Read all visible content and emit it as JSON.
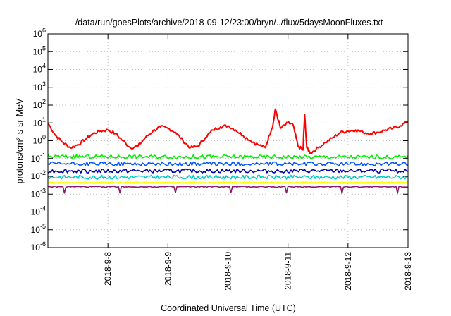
{
  "chart_data": {
    "type": "line",
    "title": "/data/run/goesPlots/archive/2018-09-12/23:00/bryn/../flux/5daysMoonFluxes.txt",
    "xlabel": "Coordinated Universal Time (UTC)",
    "ylabel": "protons/cm²-s-sr-MeV",
    "yscale": "log",
    "ylim": [
      1e-06,
      1000000.0
    ],
    "xlim": [
      "2018-09-07 00:00",
      "2018-09-13 00:00"
    ],
    "x_tick_labels": [
      "2018-9-8",
      "2018-9-9",
      "2018-9-10",
      "2018-9-11",
      "2018-9-12",
      "2018-9-13"
    ],
    "y_tick_labels": [
      {
        "base": "10",
        "exp": "-6"
      },
      {
        "base": "10",
        "exp": "-5"
      },
      {
        "base": "10",
        "exp": "-4"
      },
      {
        "base": "10",
        "exp": "-3"
      },
      {
        "base": "10",
        "exp": "-2"
      },
      {
        "base": "10",
        "exp": "-1"
      },
      {
        "base": "10",
        "exp": "0"
      },
      {
        "base": "10",
        "exp": "1"
      },
      {
        "base": "10",
        "exp": "2"
      },
      {
        "base": "10",
        "exp": "3"
      },
      {
        "base": "10",
        "exp": "4"
      },
      {
        "base": "10",
        "exp": "5"
      },
      {
        "base": "10",
        "exp": "6"
      }
    ],
    "grid": true,
    "legend": "none",
    "series": [
      {
        "color": "#ff0000",
        "x": [
          "2018-09-07 00:00",
          "2018-09-07 03:00",
          "2018-09-07 06:00",
          "2018-09-07 09:00",
          "2018-09-07 12:00",
          "2018-09-07 15:00",
          "2018-09-07 18:00",
          "2018-09-07 21:00",
          "2018-09-08 00:00",
          "2018-09-08 03:00",
          "2018-09-08 06:00",
          "2018-09-08 09:00",
          "2018-09-08 12:00",
          "2018-09-08 15:00",
          "2018-09-08 18:00",
          "2018-09-08 21:00",
          "2018-09-09 00:00",
          "2018-09-09 03:00",
          "2018-09-09 06:00",
          "2018-09-09 09:00",
          "2018-09-09 12:00",
          "2018-09-09 15:00",
          "2018-09-09 18:00",
          "2018-09-09 21:00",
          "2018-09-10 00:00",
          "2018-09-10 03:00",
          "2018-09-10 06:00",
          "2018-09-10 09:00",
          "2018-09-10 12:00",
          "2018-09-10 15:00",
          "2018-09-10 16:30",
          "2018-09-10 18:00",
          "2018-09-10 19:00",
          "2018-09-10 21:00",
          "2018-09-11 00:00",
          "2018-09-11 02:00",
          "2018-09-11 04:00",
          "2018-09-11 06:00",
          "2018-09-11 06:40",
          "2018-09-11 07:30",
          "2018-09-11 09:00",
          "2018-09-11 12:00",
          "2018-09-11 15:00",
          "2018-09-11 18:00",
          "2018-09-11 21:00",
          "2018-09-12 00:00",
          "2018-09-12 03:00",
          "2018-09-12 06:00",
          "2018-09-12 09:00",
          "2018-09-12 12:00",
          "2018-09-12 15:00",
          "2018-09-12 18:00",
          "2018-09-12 21:00",
          "2018-09-13 00:00"
        ],
        "y": [
          10,
          2,
          0.8,
          0.4,
          0.6,
          1.2,
          2.5,
          3.5,
          4,
          2.5,
          1,
          0.4,
          0.5,
          1.5,
          3.5,
          6,
          5,
          3,
          1,
          0.4,
          0.5,
          1.5,
          4,
          6,
          7,
          4,
          2,
          1,
          0.6,
          0.4,
          2,
          8,
          60,
          5,
          10,
          8,
          0.5,
          0.3,
          30,
          0.4,
          0.2,
          0.4,
          0.8,
          1.5,
          3,
          3.5,
          4,
          3,
          2.5,
          3,
          4,
          5,
          7,
          12
        ]
      },
      {
        "color": "#00ee00",
        "x": [
          "2018-09-07 00:00",
          "2018-09-13 00:00"
        ],
        "y": [
          0.13,
          0.12
        ]
      },
      {
        "color": "#0055ff",
        "x": [
          "2018-09-07 00:00",
          "2018-09-13 00:00"
        ],
        "y": [
          0.05,
          0.05
        ]
      },
      {
        "color": "#0000aa",
        "x": [
          "2018-09-07 00:00",
          "2018-09-13 00:00"
        ],
        "y": [
          0.02,
          0.02
        ]
      },
      {
        "color": "#00cccc",
        "x": [
          "2018-09-07 00:00",
          "2018-09-13 00:00"
        ],
        "y": [
          0.009,
          0.009
        ]
      },
      {
        "color": "#ffff00",
        "x": [
          "2018-09-07 00:00",
          "2018-09-13 00:00"
        ],
        "y": [
          0.0045,
          0.0045
        ]
      },
      {
        "color": "#8b1a6b",
        "x": [
          "2018-09-07 00:00",
          "2018-09-13 00:00"
        ],
        "y": [
          0.0026,
          0.0026
        ]
      }
    ]
  }
}
